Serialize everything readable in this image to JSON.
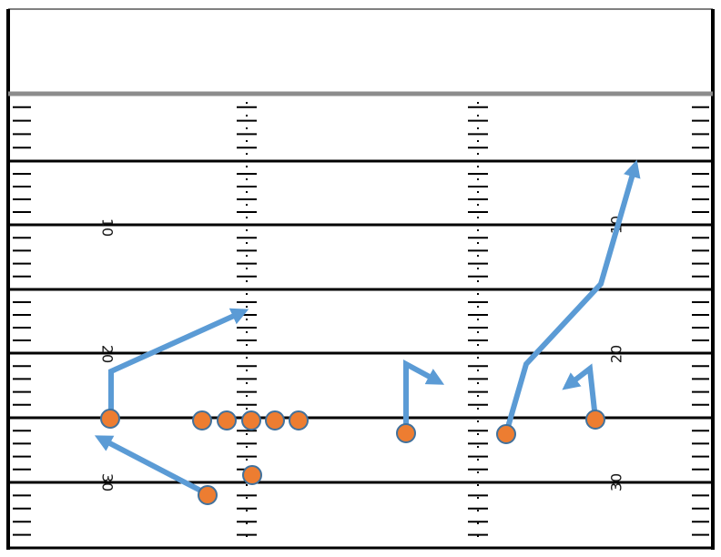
{
  "field": {
    "colors": {
      "background": "#ffffff",
      "lines": "#000000",
      "top_line": "#8c8c8c",
      "route": "#5b9bd5",
      "player_fill": "#ed7d31",
      "player_stroke": "#41719c"
    },
    "yard_numbers": {
      "left": [
        "10",
        "20",
        "30"
      ],
      "right": [
        "10",
        "20",
        "30"
      ]
    }
  },
  "play": {
    "offensive_line_count": 5,
    "receiver_count": 4,
    "backfield_count": 2
  }
}
